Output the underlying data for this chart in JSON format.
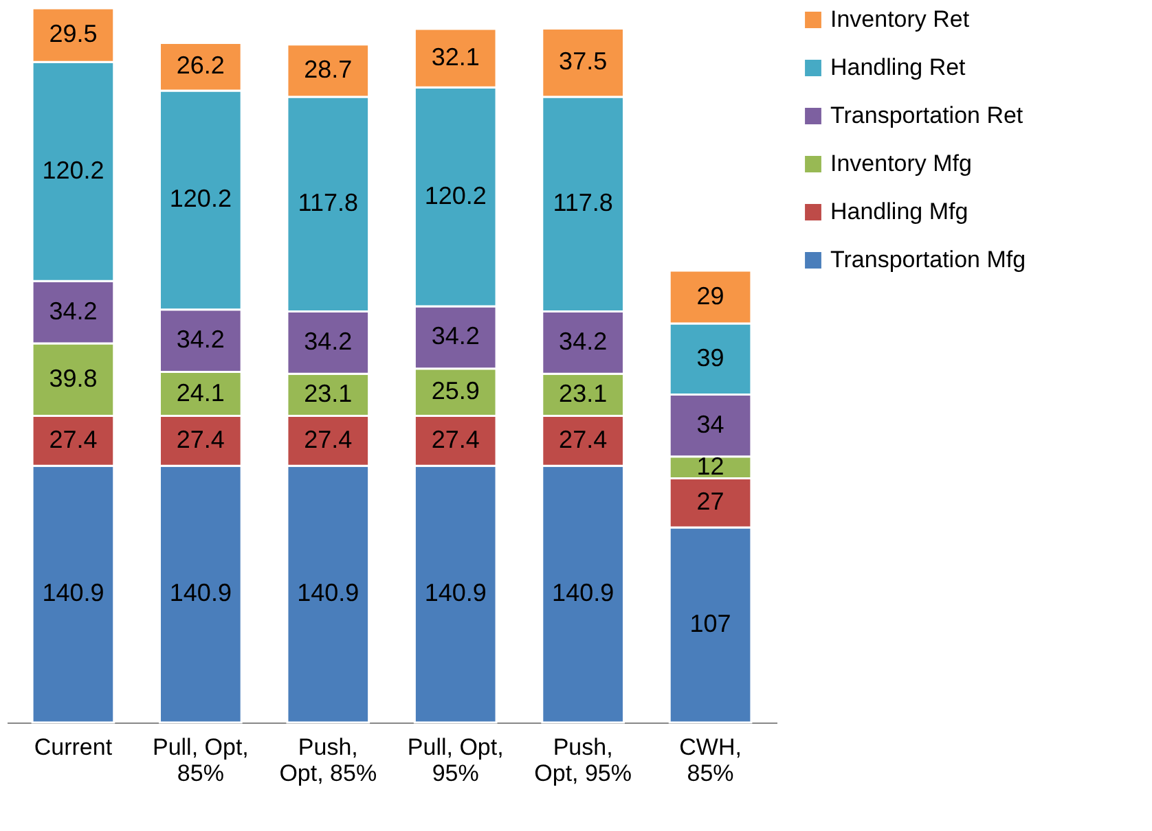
{
  "chart_data": {
    "type": "bar",
    "stacked": true,
    "data_labels": true,
    "legend": "right",
    "grid": false,
    "categories": [
      "Current",
      "Pull, Opt,\n85%",
      "Push,\nOpt, 85%",
      "Pull, Opt,\n95%",
      "Push,\nOpt, 95%",
      "CWH,\n85%"
    ],
    "series": [
      {
        "name": "Transportation Mfg",
        "color": "#4a7ebb",
        "values": [
          140.9,
          140.9,
          140.9,
          140.9,
          140.9,
          107
        ]
      },
      {
        "name": "Handling Mfg",
        "color": "#be4b48",
        "values": [
          27.4,
          27.4,
          27.4,
          27.4,
          27.4,
          27
        ]
      },
      {
        "name": "Inventory Mfg",
        "color": "#98b954",
        "values": [
          39.8,
          24.1,
          23.1,
          25.9,
          23.1,
          12
        ]
      },
      {
        "name": "Transportation Ret",
        "color": "#7d60a0",
        "values": [
          34.2,
          34.2,
          34.2,
          34.2,
          34.2,
          34
        ]
      },
      {
        "name": "Handling Ret",
        "color": "#46aac5",
        "values": [
          120.2,
          120.2,
          117.8,
          120.2,
          117.8,
          39
        ]
      },
      {
        "name": "Inventory Ret",
        "color": "#f79646",
        "values": [
          29.5,
          26.2,
          28.7,
          32.1,
          37.5,
          29
        ]
      }
    ]
  }
}
